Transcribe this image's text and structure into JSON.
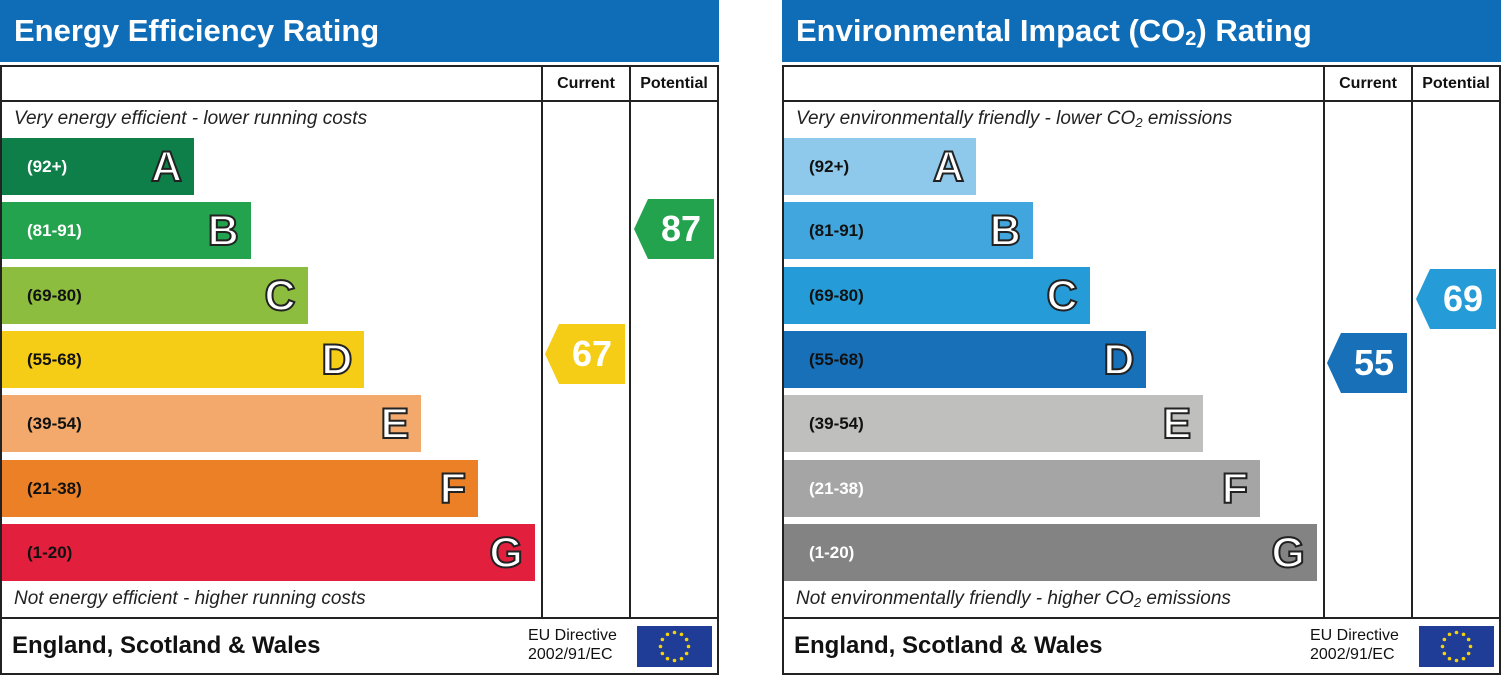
{
  "panels": [
    {
      "id": "energy",
      "title": "Energy Efficiency Rating",
      "title_sub": "",
      "title_post": "",
      "top_caption": "Very energy efficient - lower running costs",
      "top_caption_sub": "",
      "top_caption_post": "",
      "bottom_caption": "Not energy efficient - higher running costs",
      "bottom_caption_sub": "",
      "bottom_caption_post": "",
      "col_current": "Current",
      "col_potential": "Potential",
      "footer_region": "England, Scotland & Wales",
      "eu_line1": "EU Directive",
      "eu_line2": "2002/91/EC"
    },
    {
      "id": "env",
      "title": "Environmental Impact (CO",
      "title_sub": "2",
      "title_post": ") Rating",
      "top_caption": "Very environmentally friendly - lower CO",
      "top_caption_sub": "2",
      "top_caption_post": " emissions",
      "bottom_caption": "Not environmentally friendly - higher CO",
      "bottom_caption_sub": "2",
      "bottom_caption_post": " emissions",
      "col_current": "Current",
      "col_potential": "Potential",
      "footer_region": "England, Scotland & Wales",
      "eu_line1": "EU Directive",
      "eu_line2": "2002/91/EC"
    }
  ],
  "chart_data": [
    {
      "type": "bar",
      "categories": [
        "A",
        "B",
        "C",
        "D",
        "E",
        "F",
        "G"
      ],
      "ranges": [
        "(92+)",
        "(81-91)",
        "(69-80)",
        "(55-68)",
        "(39-54)",
        "(21-38)",
        "(1-20)"
      ],
      "band_colors": [
        "#0f7f4a",
        "#23a34e",
        "#8dbd3f",
        "#f6cd16",
        "#f2a96b",
        "#ec8026",
        "#e21f3c"
      ],
      "range_colors": [
        "#ffffff",
        "#ffffff",
        "#111111",
        "#111111",
        "#111111",
        "#111111",
        "#111111"
      ],
      "current": 67,
      "potential": 87,
      "current_color": "#f6cd16",
      "potential_color": "#23a34e"
    },
    {
      "type": "bar",
      "categories": [
        "A",
        "B",
        "C",
        "D",
        "E",
        "F",
        "G"
      ],
      "ranges": [
        "(92+)",
        "(81-91)",
        "(69-80)",
        "(55-68)",
        "(39-54)",
        "(21-38)",
        "(1-20)"
      ],
      "band_colors": [
        "#8ec8ea",
        "#41a6dd",
        "#259bd7",
        "#1770b8",
        "#bfbfbd",
        "#a5a5a5",
        "#838383"
      ],
      "range_colors": [
        "#111111",
        "#111111",
        "#111111",
        "#111111",
        "#111111",
        "#ffffff",
        "#ffffff"
      ],
      "current": 55,
      "potential": 69,
      "current_color": "#1770b8",
      "potential_color": "#259bd7"
    }
  ]
}
